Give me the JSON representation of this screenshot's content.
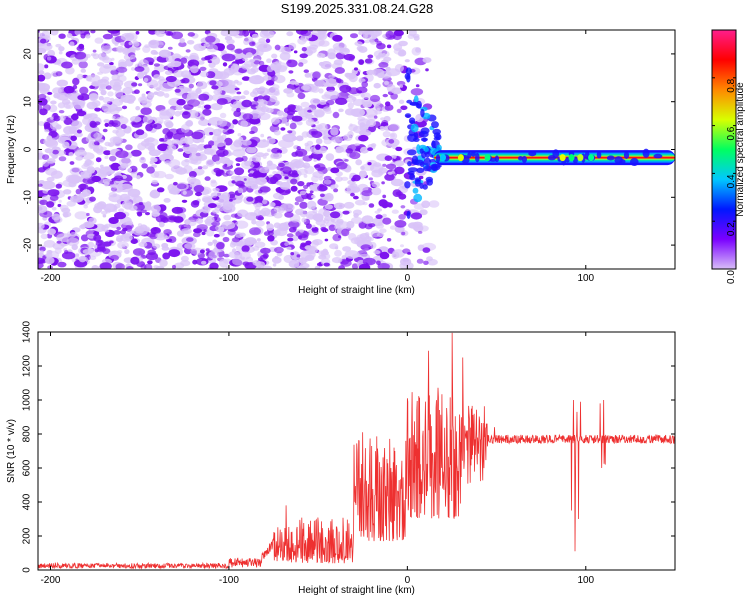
{
  "title": "S199.2025.331.08.24.G28",
  "chart_data": [
    {
      "type": "heatmap",
      "name": "spectrogram",
      "xlabel": "Height of straight line (km)",
      "ylabel": "Frequency (Hz)",
      "xlim": [
        -207,
        150
      ],
      "ylim": [
        -25,
        25
      ],
      "xticks": [
        -200,
        -100,
        0,
        100
      ],
      "yticks": [
        -20,
        -10,
        0,
        10,
        20
      ],
      "noise_region_x": [
        -207,
        15
      ],
      "transition_region_x": [
        0,
        18
      ],
      "signal_band": {
        "x_start": 15,
        "x_end": 150,
        "frequency_hz": -1.7,
        "peak_amplitude": 0.95
      },
      "colorbar": {
        "label": "Normalized spectral amplitude",
        "range": [
          0,
          1
        ],
        "ticks": [
          0.0,
          0.2,
          0.4,
          0.6,
          0.8
        ],
        "tick_labels": [
          "0.0",
          "0.2",
          "0.4",
          "0.6",
          "0.8"
        ],
        "stops": [
          "#d8bef8",
          "#7a00ff",
          "#0018ff",
          "#00c8ff",
          "#00ff60",
          "#d8ff00",
          "#ff8800",
          "#ff0000",
          "#ff1e8c"
        ]
      },
      "colors": {
        "noise": "#7a10ee",
        "band_edge": "#1a10ff",
        "band_mid": "#00e0b0",
        "band_core": "#ff1010"
      }
    },
    {
      "type": "line",
      "name": "snr",
      "xlabel": "Height of straight line (km)",
      "ylabel": "SNR (10 * v/v)",
      "xlim": [
        -207,
        150
      ],
      "ylim": [
        0,
        1400
      ],
      "xticks": [
        -200,
        -100,
        0,
        100
      ],
      "yticks": [
        0,
        200,
        400,
        600,
        800,
        1000,
        1200,
        1400
      ],
      "color": "#ee3030",
      "segments": [
        {
          "x": [
            -207,
            -100
          ],
          "baseline": 25,
          "noise": 15
        },
        {
          "x": [
            -100,
            -80
          ],
          "baseline": 40,
          "noise": 30
        },
        {
          "x": [
            -80,
            -65
          ],
          "baseline": 120,
          "noise": 140
        },
        {
          "x": [
            -65,
            -30
          ],
          "baseline": 130,
          "noise": 180
        },
        {
          "x": [
            -30,
            0
          ],
          "baseline": 380,
          "noise": 420
        },
        {
          "x": [
            0,
            30
          ],
          "baseline": 560,
          "noise": 520
        },
        {
          "x": [
            30,
            45
          ],
          "baseline": 650,
          "noise": 320
        },
        {
          "x": [
            45,
            150
          ],
          "baseline": 770,
          "noise": 25
        }
      ],
      "peaks": [
        {
          "x": 25,
          "y": 1395
        },
        {
          "x": 12,
          "y": 1290
        },
        {
          "x": 31,
          "y": 1250
        },
        {
          "x": 0,
          "y": 1010
        },
        {
          "x": -25,
          "y": 810
        },
        {
          "x": -68,
          "y": 380
        }
      ],
      "dips": [
        {
          "x": 94,
          "y": 110
        },
        {
          "x": 110,
          "y": 500
        }
      ]
    }
  ]
}
